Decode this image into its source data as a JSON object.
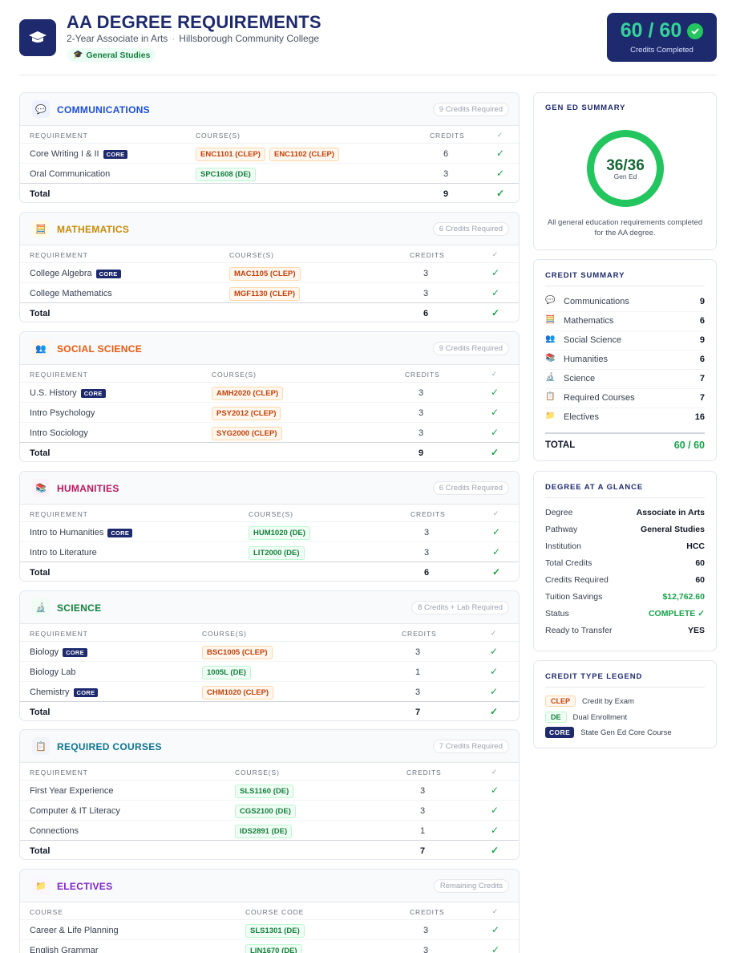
{
  "header": {
    "title": "AA DEGREE REQUIREMENTS",
    "degree": "2-Year Associate in Arts",
    "separator": "·",
    "institution": "Hillsborough Community College",
    "pathway": "General Studies",
    "credits_big": "60 / 60",
    "credits_label": "Credits Completed"
  },
  "badge_labels": {
    "core": "CORE"
  },
  "col_headers": {
    "requirement": "REQUIREMENT",
    "courses": "COURSE(S)",
    "credits": "CREDITS",
    "check": "✓",
    "course": "COURSE",
    "course_code": "COURSE CODE"
  },
  "check_mark": "✓",
  "total_label": "Total",
  "sections": {
    "communications": {
      "title": "COMMUNICATIONS",
      "pill": "9 Credits Required",
      "icon": "speech-bubble",
      "rows": [
        {
          "req": "Core Writing I & II",
          "core": true,
          "courses": [
            {
              "code": "ENC1101 (CLEP)",
              "type": "clep"
            },
            {
              "code": "ENC1102 (CLEP)",
              "type": "clep"
            }
          ],
          "credits": "6"
        },
        {
          "req": "Oral Communication",
          "core": false,
          "courses": [
            {
              "code": "SPC1608 (DE)",
              "type": "de"
            }
          ],
          "credits": "3"
        }
      ],
      "total": "9"
    },
    "mathematics": {
      "title": "MATHEMATICS",
      "pill": "6 Credits Required",
      "icon": "abacus",
      "rows": [
        {
          "req": "College Algebra",
          "core": true,
          "courses": [
            {
              "code": "MAC1105 (CLEP)",
              "type": "clep"
            }
          ],
          "credits": "3"
        },
        {
          "req": "College Mathematics",
          "core": false,
          "courses": [
            {
              "code": "MGF1130 (CLEP)",
              "type": "clep"
            }
          ],
          "credits": "3"
        }
      ],
      "total": "6"
    },
    "social_science": {
      "title": "SOCIAL SCIENCE",
      "pill": "9 Credits Required",
      "icon": "people",
      "rows": [
        {
          "req": "U.S. History",
          "core": true,
          "courses": [
            {
              "code": "AMH2020 (CLEP)",
              "type": "clep"
            }
          ],
          "credits": "3"
        },
        {
          "req": "Intro Psychology",
          "core": false,
          "courses": [
            {
              "code": "PSY2012 (CLEP)",
              "type": "clep"
            }
          ],
          "credits": "3"
        },
        {
          "req": "Intro Sociology",
          "core": false,
          "courses": [
            {
              "code": "SYG2000 (CLEP)",
              "type": "clep"
            }
          ],
          "credits": "3"
        }
      ],
      "total": "9"
    },
    "humanities": {
      "title": "HUMANITIES",
      "pill": "6 Credits Required",
      "icon": "books",
      "rows": [
        {
          "req": "Intro to Humanities",
          "core": true,
          "courses": [
            {
              "code": "HUM1020 (DE)",
              "type": "de"
            }
          ],
          "credits": "3"
        },
        {
          "req": "Intro to Literature",
          "core": false,
          "courses": [
            {
              "code": "LIT2000 (DE)",
              "type": "de"
            }
          ],
          "credits": "3"
        }
      ],
      "total": "6"
    },
    "science": {
      "title": "SCIENCE",
      "pill": "8 Credits + Lab Required",
      "icon": "microscope",
      "rows": [
        {
          "req": "Biology",
          "core": true,
          "courses": [
            {
              "code": "BSC1005 (CLEP)",
              "type": "clep"
            }
          ],
          "credits": "3"
        },
        {
          "req": "Biology Lab",
          "core": false,
          "courses": [
            {
              "code": "1005L (DE)",
              "type": "de"
            }
          ],
          "credits": "1"
        },
        {
          "req": "Chemistry",
          "core": true,
          "courses": [
            {
              "code": "CHM1020 (CLEP)",
              "type": "clep"
            }
          ],
          "credits": "3"
        }
      ],
      "total": "7"
    },
    "required": {
      "title": "REQUIRED COURSES",
      "pill": "7 Credits Required",
      "icon": "clipboard",
      "rows": [
        {
          "req": "First Year Experience",
          "core": false,
          "courses": [
            {
              "code": "SLS1160 (DE)",
              "type": "de"
            }
          ],
          "credits": "3"
        },
        {
          "req": "Computer & IT Literacy",
          "core": false,
          "courses": [
            {
              "code": "CGS2100 (DE)",
              "type": "de"
            }
          ],
          "credits": "3"
        },
        {
          "req": "Connections",
          "core": false,
          "courses": [
            {
              "code": "IDS2891 (DE)",
              "type": "de"
            }
          ],
          "credits": "1"
        }
      ],
      "total": "7"
    },
    "electives": {
      "title": "ELECTIVES",
      "pill": "Remaining Credits",
      "icon": "folder",
      "rows": [
        {
          "req": "Career & Life Planning",
          "core": false,
          "courses": [
            {
              "code": "SLS1301 (DE)",
              "type": "de"
            }
          ],
          "credits": "3"
        },
        {
          "req": "English Grammar",
          "core": false,
          "courses": [
            {
              "code": "LIN1670 (DE)",
              "type": "de"
            }
          ],
          "credits": "3"
        }
      ]
    }
  },
  "gen_ed": {
    "title": "GEN ED SUMMARY",
    "value": "36/36",
    "sub": "Gen Ed",
    "progress": 1.0,
    "note": "All general education requirements completed for the AA degree."
  },
  "credit_summary": {
    "title": "CREDIT SUMMARY",
    "items": [
      {
        "label": "Communications",
        "value": "9",
        "icon": "💬"
      },
      {
        "label": "Mathematics",
        "value": "6",
        "icon": "🧮"
      },
      {
        "label": "Social Science",
        "value": "9",
        "icon": "👥"
      },
      {
        "label": "Humanities",
        "value": "6",
        "icon": "📚"
      },
      {
        "label": "Science",
        "value": "7",
        "icon": "🔬"
      },
      {
        "label": "Required Courses",
        "value": "7",
        "icon": "📋"
      },
      {
        "label": "Electives",
        "value": "16",
        "icon": "📁"
      }
    ],
    "total_label": "TOTAL",
    "total_value": "60 / 60"
  },
  "glance": {
    "title": "DEGREE AT A GLANCE",
    "items": [
      {
        "label": "Degree",
        "value": "Associate in Arts"
      },
      {
        "label": "Pathway",
        "value": "General Studies"
      },
      {
        "label": "Institution",
        "value": "HCC"
      },
      {
        "label": "Total Credits",
        "value": "60"
      },
      {
        "label": "Credits Required",
        "value": "60"
      },
      {
        "label": "Tuition Savings",
        "value": "$12,762.60"
      },
      {
        "label": "Status",
        "value": "COMPLETE ✓"
      },
      {
        "label": "Ready to Transfer",
        "value": "YES"
      }
    ]
  },
  "legend": {
    "title": "CREDIT TYPE LEGEND",
    "items": [
      {
        "badge": "CLEP",
        "label": "Credit by Exam"
      },
      {
        "badge": "DE",
        "label": "Dual Enrollment"
      },
      {
        "badge": "CORE",
        "label": "State Gen Ed Core Course"
      }
    ]
  },
  "colors": {
    "navy": "#1e2a6e",
    "green": "#16a34a",
    "communications": "#1d4ed8",
    "mathematics": "#ca8a04",
    "social_science": "#ea580c",
    "humanities": "#be185d",
    "science": "#15803d",
    "required": "#0e7490",
    "electives": "#7e22ce"
  }
}
